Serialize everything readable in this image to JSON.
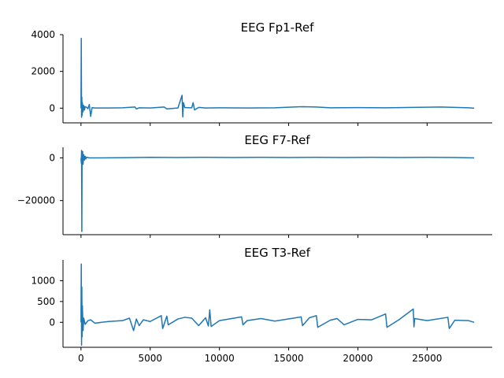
{
  "chart_data": [
    {
      "type": "line",
      "title": "EEG Fp1-Ref",
      "xlabel": "",
      "ylabel": "",
      "xlim": [
        -1300,
        29700
      ],
      "ylim": [
        -800,
        4000
      ],
      "xticks": [
        0,
        5000,
        10000,
        15000,
        20000,
        25000
      ],
      "xtick_labels": [
        "",
        "",
        "",
        "",
        "",
        ""
      ],
      "yticks": [
        0,
        2000,
        4000
      ],
      "ytick_labels": [
        "0",
        "2000",
        "4000"
      ],
      "color": "#1f77b4",
      "series": [
        {
          "x": [
            0,
            20,
            40,
            60,
            80,
            100,
            150,
            200,
            250,
            300,
            400,
            500,
            600,
            700,
            800,
            1000,
            2000,
            3000,
            3900,
            4000,
            4200,
            5000,
            6000,
            6200,
            7000,
            7300,
            7350,
            7400,
            7500,
            8000,
            8100,
            8200,
            8500,
            9000,
            10000,
            12000,
            14000,
            16000,
            17000,
            18000,
            20000,
            22000,
            24000,
            26000,
            27000,
            28000,
            28400
          ],
          "y": [
            0,
            3800,
            -500,
            600,
            -400,
            300,
            -200,
            150,
            -100,
            80,
            50,
            -30,
            200,
            -450,
            30,
            10,
            10,
            20,
            60,
            -40,
            20,
            10,
            60,
            -40,
            10,
            700,
            -480,
            300,
            30,
            20,
            300,
            -100,
            40,
            10,
            20,
            10,
            20,
            80,
            60,
            20,
            30,
            20,
            40,
            60,
            40,
            20,
            0
          ]
        }
      ]
    },
    {
      "type": "line",
      "title": "EEG F7-Ref",
      "xlabel": "",
      "ylabel": "",
      "xlim": [
        -1300,
        29700
      ],
      "ylim": [
        -36000,
        5000
      ],
      "xticks": [
        0,
        5000,
        10000,
        15000,
        20000,
        25000
      ],
      "xtick_labels": [
        "",
        "",
        "",
        "",
        "",
        ""
      ],
      "yticks": [
        -20000,
        0
      ],
      "ytick_labels": [
        "−20000",
        "0"
      ],
      "color": "#1f77b4",
      "series": [
        {
          "x": [
            0,
            20,
            40,
            60,
            80,
            100,
            120,
            150,
            200,
            250,
            300,
            350,
            400,
            600,
            1000,
            3000,
            5000,
            7000,
            9000,
            11000,
            13000,
            15000,
            17000,
            19000,
            21000,
            23000,
            25000,
            27000,
            28400
          ],
          "y": [
            0,
            -2500,
            3500,
            -34500,
            2500,
            -1500,
            3000,
            -3000,
            1500,
            -1000,
            800,
            -500,
            300,
            0,
            0,
            100,
            300,
            200,
            300,
            200,
            300,
            200,
            300,
            200,
            300,
            200,
            300,
            200,
            0
          ]
        }
      ]
    },
    {
      "type": "line",
      "title": "EEG T3-Ref",
      "xlabel": "",
      "ylabel": "",
      "xlim": [
        -1300,
        29700
      ],
      "ylim": [
        -600,
        1500
      ],
      "xticks": [
        0,
        5000,
        10000,
        15000,
        20000,
        25000
      ],
      "xtick_labels": [
        "0",
        "5000",
        "10000",
        "15000",
        "20000",
        "25000"
      ],
      "yticks": [
        0,
        500,
        1000
      ],
      "ytick_labels": [
        "0",
        "500",
        "1000"
      ],
      "color": "#1f77b4",
      "series": [
        {
          "x": [
            0,
            20,
            40,
            60,
            80,
            100,
            150,
            200,
            300,
            500,
            700,
            1000,
            2000,
            3000,
            3500,
            3800,
            4000,
            4200,
            4500,
            5000,
            5800,
            5900,
            6200,
            6300,
            7000,
            7500,
            8000,
            8500,
            9000,
            9200,
            9300,
            9400,
            10000,
            11600,
            11700,
            12000,
            13000,
            14000,
            15900,
            16000,
            16500,
            17000,
            17100,
            18000,
            18500,
            19000,
            20000,
            21000,
            22000,
            22100,
            23000,
            24000,
            24050,
            24100,
            25000,
            26500,
            26600,
            27000,
            28000,
            28400
          ],
          "y": [
            0,
            1400,
            -550,
            850,
            -350,
            400,
            -200,
            100,
            -50,
            40,
            60,
            -20,
            20,
            40,
            100,
            -200,
            80,
            -80,
            60,
            20,
            160,
            -150,
            150,
            -60,
            80,
            120,
            100,
            -80,
            110,
            -90,
            300,
            -100,
            40,
            130,
            -60,
            40,
            90,
            30,
            130,
            -80,
            110,
            160,
            -120,
            50,
            90,
            -60,
            70,
            60,
            200,
            -120,
            70,
            320,
            -110,
            90,
            40,
            120,
            -150,
            50,
            40,
            0
          ]
        }
      ]
    }
  ]
}
